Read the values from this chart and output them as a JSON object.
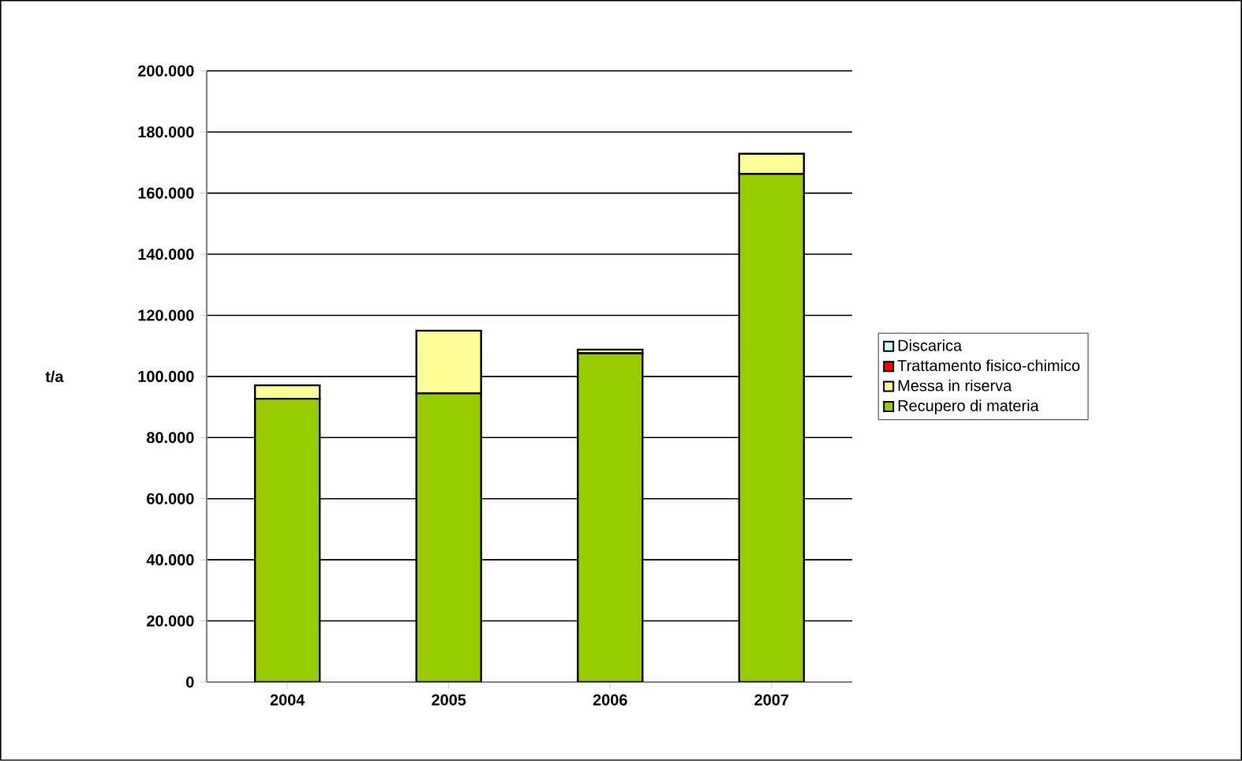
{
  "chart_data": {
    "type": "bar",
    "stacked": true,
    "ylabel": "t/a",
    "categories": [
      "2004",
      "2005",
      "2006",
      "2007"
    ],
    "series": [
      {
        "name": "Recupero di materia",
        "color": "#99cc00",
        "values": [
          92700,
          94500,
          107600,
          166300
        ]
      },
      {
        "name": "Messa in riserva",
        "color": "#ffff99",
        "values": [
          4400,
          20500,
          1200,
          6600
        ]
      },
      {
        "name": "Trattamento fisico-chimico",
        "color": "#ff0000",
        "values": [
          0,
          0,
          0,
          0
        ]
      },
      {
        "name": "Discarica",
        "color": "#ccffff",
        "values": [
          0,
          0,
          0,
          0
        ]
      }
    ],
    "ylim": [
      0,
      200000
    ],
    "yticks": [
      {
        "value": 0,
        "label": "0"
      },
      {
        "value": 20000,
        "label": "20.000"
      },
      {
        "value": 40000,
        "label": "40.000"
      },
      {
        "value": 60000,
        "label": "60.000"
      },
      {
        "value": 80000,
        "label": "80.000"
      },
      {
        "value": 100000,
        "label": "100.000"
      },
      {
        "value": 120000,
        "label": "120.000"
      },
      {
        "value": 140000,
        "label": "140.000"
      },
      {
        "value": 160000,
        "label": "160.000"
      },
      {
        "value": 180000,
        "label": "180.000"
      },
      {
        "value": 200000,
        "label": "200.000"
      }
    ],
    "grid": "y",
    "legend": "right"
  }
}
